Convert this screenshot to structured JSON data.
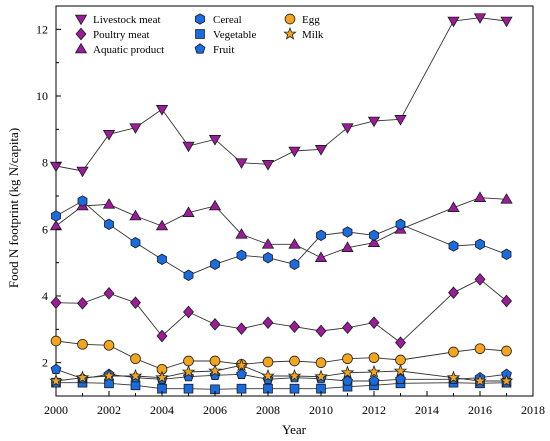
{
  "chart_data": {
    "type": "line",
    "xlabel": "Year",
    "ylabel": "Food N footprint (kg N/capita)",
    "xlim": [
      2000,
      2018
    ],
    "ylim": [
      1,
      12.7
    ],
    "x_ticks": [
      "2000",
      "2002",
      "2004",
      "2006",
      "2008",
      "2010",
      "2012",
      "2014",
      "2016",
      "2018"
    ],
    "y_ticks": [
      "2",
      "4",
      "6",
      "8",
      "10",
      "12"
    ],
    "grid": false,
    "legend_position": "top-left",
    "series": [
      {
        "name": "Livestock meat",
        "marker": "triangle-down",
        "color": "#9b1b99",
        "fill": "#9b1b99",
        "x": [
          2000,
          2001,
          2002,
          2003,
          2004,
          2005,
          2006,
          2007,
          2008,
          2009,
          2010,
          2011,
          2012,
          2013,
          2015,
          2016,
          2017
        ],
        "values": [
          7.9,
          7.75,
          8.85,
          9.05,
          9.6,
          8.5,
          8.7,
          8.0,
          7.95,
          8.35,
          8.4,
          9.05,
          9.25,
          9.3,
          12.25,
          12.35,
          12.25
        ]
      },
      {
        "name": "Poultry meat",
        "marker": "diamond",
        "color": "#9b1b99",
        "fill": "#9b1b99",
        "x": [
          2000,
          2001,
          2002,
          2003,
          2004,
          2005,
          2006,
          2007,
          2008,
          2009,
          2010,
          2011,
          2012,
          2013,
          2015,
          2016,
          2017
        ],
        "values": [
          3.8,
          3.78,
          4.08,
          3.8,
          2.8,
          3.52,
          3.15,
          3.02,
          3.2,
          3.08,
          2.95,
          3.05,
          3.2,
          2.6,
          4.1,
          4.5,
          3.85
        ]
      },
      {
        "name": "Aquatic product",
        "marker": "triangle-up",
        "color": "#9b1b99",
        "fill": "#9b1b99",
        "x": [
          2000,
          2001,
          2002,
          2003,
          2004,
          2005,
          2006,
          2007,
          2008,
          2009,
          2010,
          2011,
          2012,
          2013,
          2015,
          2016,
          2017
        ],
        "values": [
          6.1,
          6.7,
          6.75,
          6.4,
          6.1,
          6.5,
          6.7,
          5.85,
          5.55,
          5.55,
          5.15,
          5.45,
          5.6,
          6.0,
          6.65,
          6.95,
          6.9
        ]
      },
      {
        "name": "Cereal",
        "marker": "hexagon",
        "color": "#1a6be0",
        "fill": "#1a6be0",
        "x": [
          2000,
          2001,
          2002,
          2003,
          2004,
          2005,
          2006,
          2007,
          2008,
          2009,
          2010,
          2011,
          2012,
          2013,
          2015,
          2016,
          2017
        ],
        "values": [
          6.4,
          6.85,
          6.15,
          5.6,
          5.1,
          4.62,
          4.95,
          5.22,
          5.15,
          4.95,
          5.82,
          5.92,
          5.82,
          6.15,
          5.5,
          5.55,
          5.25
        ]
      },
      {
        "name": "Vegetable",
        "marker": "square",
        "color": "#1a6be0",
        "fill": "#1a6be0",
        "x": [
          2000,
          2001,
          2002,
          2003,
          2004,
          2005,
          2006,
          2007,
          2008,
          2009,
          2010,
          2011,
          2012,
          2013,
          2015,
          2016,
          2017
        ],
        "values": [
          1.4,
          1.4,
          1.38,
          1.32,
          1.22,
          1.22,
          1.2,
          1.22,
          1.22,
          1.22,
          1.22,
          1.28,
          1.32,
          1.38,
          1.4,
          1.38,
          1.4
        ]
      },
      {
        "name": "Fruit",
        "marker": "pentagon",
        "color": "#1a6be0",
        "fill": "#1a6be0",
        "x": [
          2000,
          2001,
          2002,
          2003,
          2004,
          2005,
          2006,
          2007,
          2008,
          2009,
          2010,
          2011,
          2012,
          2013,
          2015,
          2016,
          2017
        ],
        "values": [
          1.8,
          1.52,
          1.65,
          1.55,
          1.5,
          1.58,
          1.62,
          1.65,
          1.5,
          1.55,
          1.52,
          1.45,
          1.45,
          1.5,
          1.5,
          1.55,
          1.65
        ]
      },
      {
        "name": "Egg",
        "marker": "circle",
        "color": "#222222",
        "fill": "#f2a51d",
        "x": [
          2000,
          2001,
          2002,
          2003,
          2004,
          2005,
          2006,
          2007,
          2008,
          2009,
          2010,
          2011,
          2012,
          2013,
          2015,
          2016,
          2017
        ],
        "values": [
          2.65,
          2.55,
          2.52,
          2.12,
          1.8,
          2.05,
          2.05,
          1.95,
          2.02,
          2.05,
          2.0,
          2.12,
          2.15,
          2.08,
          2.32,
          2.42,
          2.35
        ]
      },
      {
        "name": "Milk",
        "marker": "star",
        "color": "#222222",
        "fill": "#f2a51d",
        "x": [
          2000,
          2001,
          2002,
          2003,
          2004,
          2005,
          2006,
          2007,
          2008,
          2009,
          2010,
          2011,
          2012,
          2013,
          2015,
          2016,
          2017
        ],
        "values": [
          1.45,
          1.55,
          1.6,
          1.6,
          1.55,
          1.72,
          1.75,
          1.92,
          1.6,
          1.6,
          1.58,
          1.7,
          1.72,
          1.75,
          1.55,
          1.45,
          1.45
        ]
      }
    ]
  }
}
